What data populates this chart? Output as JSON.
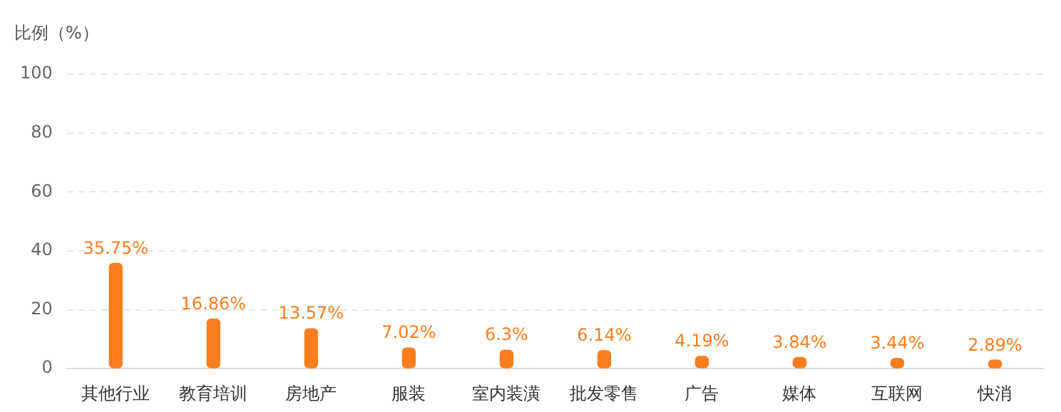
{
  "chart_data": {
    "type": "bar",
    "ylabel": "比例（%）",
    "categories": [
      "其他行业",
      "教育培训",
      "房地产",
      "服装",
      "室内装潢",
      "批发零售",
      "广告",
      "媒体",
      "互联网",
      "快消"
    ],
    "values": [
      35.75,
      16.86,
      13.57,
      7.02,
      6.3,
      6.14,
      4.19,
      3.84,
      3.44,
      2.89
    ],
    "value_labels": [
      "35.75%",
      "16.86%",
      "13.57%",
      "7.02%",
      "6.3%",
      "6.14%",
      "4.19%",
      "3.84%",
      "3.44%",
      "2.89%"
    ],
    "color": "#fb7d1f",
    "ylim": [
      0,
      100
    ],
    "yticks": [
      0,
      20,
      40,
      60,
      80,
      100
    ],
    "grid": "y",
    "legend": false
  }
}
